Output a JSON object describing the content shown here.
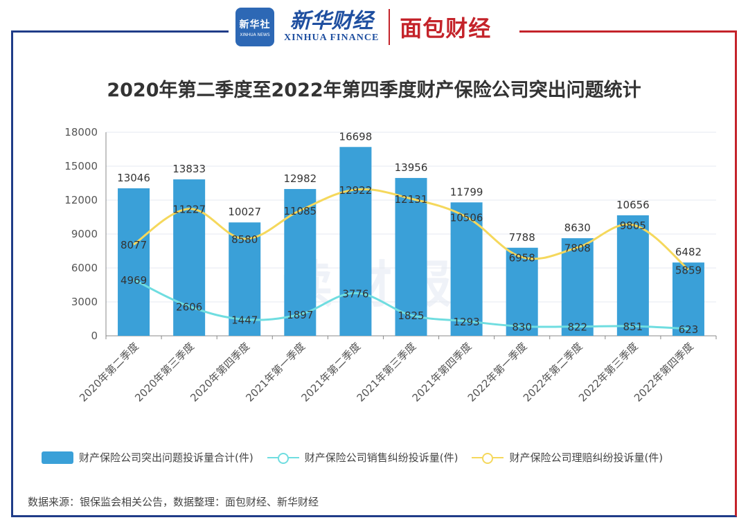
{
  "header": {
    "xinhua_logo_text": "新华社",
    "xinhua_logo_sub": "XINHUA NEWS",
    "xinhua_finance_cn": "新华财经",
    "xinhua_finance_en": "XINHUA FINANCE",
    "mianbao_logo": "面包财经"
  },
  "colors": {
    "bar": "#3aa0d8",
    "sales_line": "#6fdde0",
    "claims_line": "#f5d85c",
    "frame_blue": "#1f3c88",
    "frame_red": "#c4232a"
  },
  "watermark": "读财报",
  "chart_data": {
    "type": "bar",
    "title": "2020年第二季度至2022年第四季度财产保险公司突出问题统计",
    "categories": [
      "2020年第二季度",
      "2020年第三季度",
      "2020年第四季度",
      "2021年第一季度",
      "2021年第二季度",
      "2021年第三季度",
      "2021年第四季度",
      "2022年第一季度",
      "2022年第二季度",
      "2022年第三季度",
      "2022年第四季度"
    ],
    "ylim": [
      0,
      18000
    ],
    "yticks": [
      0,
      3000,
      6000,
      9000,
      12000,
      15000,
      18000
    ],
    "grid": true,
    "series": [
      {
        "name": "财产保险公司突出问题投诉量合计(件)",
        "type": "bar",
        "values": [
          13046,
          13833,
          10027,
          12982,
          16698,
          13956,
          11799,
          7788,
          8630,
          10656,
          6482
        ]
      },
      {
        "name": "财产保险公司销售纠纷投诉量(件)",
        "type": "line",
        "values": [
          4969,
          2606,
          1447,
          1897,
          3776,
          1825,
          1293,
          830,
          822,
          851,
          623
        ]
      },
      {
        "name": "财产保险公司理赔纠纷投诉量(件)",
        "type": "line",
        "values": [
          8077,
          11227,
          8580,
          11085,
          12922,
          12131,
          10506,
          6958,
          7808,
          9805,
          5859
        ]
      }
    ]
  },
  "source": "数据来源：银保监会相关公告，数据整理：面包财经、新华财经"
}
